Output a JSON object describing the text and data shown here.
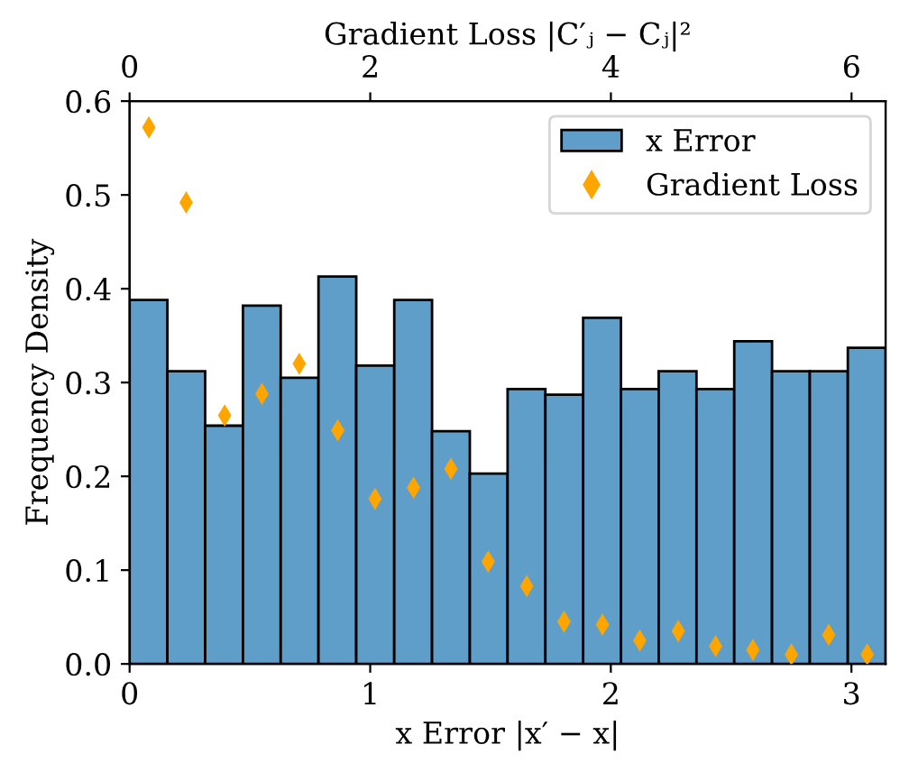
{
  "chart_data": {
    "type": "histogram",
    "bins": [
      0,
      0.157,
      0.314,
      0.471,
      0.628,
      0.785,
      0.942,
      1.1,
      1.257,
      1.414,
      1.571,
      1.728,
      1.885,
      2.042,
      2.199,
      2.356,
      2.513,
      2.67,
      2.827,
      2.985,
      3.142
    ],
    "series": [
      {
        "name": "x Error",
        "color": "#5f9ec9",
        "values": [
          0.388,
          0.312,
          0.254,
          0.382,
          0.305,
          0.413,
          0.318,
          0.388,
          0.248,
          0.203,
          0.293,
          0.287,
          0.369,
          0.293,
          0.312,
          0.293,
          0.344,
          0.312,
          0.312,
          0.337
        ]
      },
      {
        "name": "Gradient Loss",
        "type": "scatter",
        "axis": "x2",
        "color": "#ffa500",
        "marker": "diamond",
        "x": [
          0.16,
          0.47,
          0.79,
          1.1,
          1.41,
          1.73,
          2.04,
          2.36,
          2.67,
          2.98,
          3.3,
          3.61,
          3.93,
          4.24,
          4.56,
          4.87,
          5.18,
          5.5,
          5.81,
          6.13
        ],
        "values": [
          0.572,
          0.492,
          0.265,
          0.288,
          0.32,
          0.249,
          0.176,
          0.188,
          0.208,
          0.109,
          0.083,
          0.045,
          0.042,
          0.025,
          0.035,
          0.019,
          0.015,
          0.01,
          0.031,
          0.01
        ]
      }
    ],
    "xlabel": "x Error |x′ − x|",
    "x2label": "Gradient Loss |C′ⱼ − Cⱼ|²",
    "ylabel": "Frequency Density",
    "xlim": [
      0,
      3.142
    ],
    "xticks": [
      0,
      1,
      2,
      3
    ],
    "x2lim": [
      0,
      6.283
    ],
    "x2ticks": [
      0,
      2,
      4,
      6
    ],
    "ylim": [
      0,
      0.6
    ],
    "yticks": [
      {
        "value": 0,
        "label": "0.0"
      },
      0.1,
      0.2,
      0.3,
      0.4,
      0.5,
      0.6
    ],
    "legend": "top right",
    "grid": false
  }
}
